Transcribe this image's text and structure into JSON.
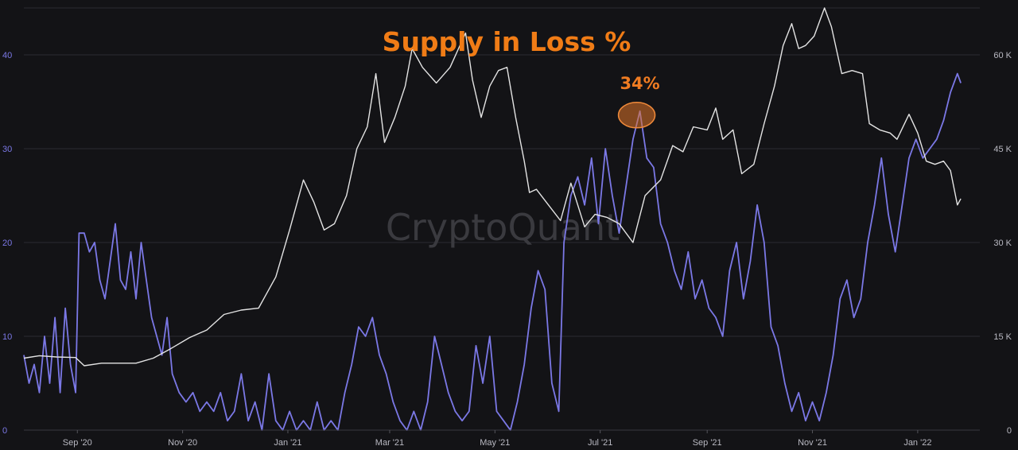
{
  "chart_data": {
    "type": "line",
    "title": "Supply in Loss %",
    "watermark": "CryptoQuant",
    "annotation": {
      "label": "34%",
      "x": "2021-07-24",
      "y": 34
    },
    "x": {
      "type": "date",
      "range": [
        "2020-08-01",
        "2022-02-06"
      ],
      "tick_labels": [
        {
          "label": "Sep '20",
          "date": "2020-09-01"
        },
        {
          "label": "Nov '20",
          "date": "2020-11-01"
        },
        {
          "label": "Jan '21",
          "date": "2021-01-01"
        },
        {
          "label": "Mar '21",
          "date": "2021-03-01"
        },
        {
          "label": "May '21",
          "date": "2021-05-01"
        },
        {
          "label": "Jul '21",
          "date": "2021-07-01"
        },
        {
          "label": "Sep '21",
          "date": "2021-09-01"
        },
        {
          "label": "Nov '21",
          "date": "2021-11-01"
        },
        {
          "label": "Jan '22",
          "date": "2022-01-01"
        }
      ]
    },
    "y_left": {
      "range": [
        0,
        45
      ],
      "ticks": [
        0,
        10,
        20,
        30,
        40
      ],
      "tick_labels": [
        "0",
        "10",
        "20",
        "30",
        "40"
      ]
    },
    "y_right": {
      "range": [
        0,
        67500
      ],
      "ticks": [
        0,
        15000,
        30000,
        45000,
        60000
      ],
      "tick_labels": [
        "0",
        "15 K",
        "30 K",
        "45 K",
        "60 K"
      ]
    },
    "grid": true,
    "series": [
      {
        "axis": "left",
        "color": "#7b78e6",
        "points": [
          [
            "2020-08-01",
            8
          ],
          [
            "2020-08-04",
            5
          ],
          [
            "2020-08-07",
            7
          ],
          [
            "2020-08-10",
            4
          ],
          [
            "2020-08-13",
            10
          ],
          [
            "2020-08-16",
            5
          ],
          [
            "2020-08-19",
            12
          ],
          [
            "2020-08-22",
            4
          ],
          [
            "2020-08-25",
            13
          ],
          [
            "2020-08-28",
            7
          ],
          [
            "2020-08-31",
            4
          ],
          [
            "2020-09-02",
            21
          ],
          [
            "2020-09-05",
            21
          ],
          [
            "2020-09-08",
            19
          ],
          [
            "2020-09-11",
            20
          ],
          [
            "2020-09-14",
            16
          ],
          [
            "2020-09-17",
            14
          ],
          [
            "2020-09-20",
            18
          ],
          [
            "2020-09-23",
            22
          ],
          [
            "2020-09-26",
            16
          ],
          [
            "2020-09-29",
            15
          ],
          [
            "2020-10-02",
            19
          ],
          [
            "2020-10-05",
            14
          ],
          [
            "2020-10-08",
            20
          ],
          [
            "2020-10-11",
            16
          ],
          [
            "2020-10-14",
            12
          ],
          [
            "2020-10-17",
            10
          ],
          [
            "2020-10-20",
            8
          ],
          [
            "2020-10-23",
            12
          ],
          [
            "2020-10-26",
            6
          ],
          [
            "2020-10-30",
            4
          ],
          [
            "2020-11-03",
            3
          ],
          [
            "2020-11-07",
            4
          ],
          [
            "2020-11-11",
            2
          ],
          [
            "2020-11-15",
            3
          ],
          [
            "2020-11-19",
            2
          ],
          [
            "2020-11-23",
            4
          ],
          [
            "2020-11-27",
            1
          ],
          [
            "2020-12-01",
            2
          ],
          [
            "2020-12-05",
            6
          ],
          [
            "2020-12-09",
            1
          ],
          [
            "2020-12-13",
            3
          ],
          [
            "2020-12-17",
            0
          ],
          [
            "2020-12-21",
            6
          ],
          [
            "2020-12-25",
            1
          ],
          [
            "2020-12-29",
            0
          ],
          [
            "2021-01-02",
            2
          ],
          [
            "2021-01-06",
            0
          ],
          [
            "2021-01-10",
            1
          ],
          [
            "2021-01-14",
            0
          ],
          [
            "2021-01-18",
            3
          ],
          [
            "2021-01-22",
            0
          ],
          [
            "2021-01-26",
            1
          ],
          [
            "2021-01-30",
            0
          ],
          [
            "2021-02-03",
            4
          ],
          [
            "2021-02-07",
            7
          ],
          [
            "2021-02-11",
            11
          ],
          [
            "2021-02-15",
            10
          ],
          [
            "2021-02-19",
            12
          ],
          [
            "2021-02-23",
            8
          ],
          [
            "2021-02-27",
            6
          ],
          [
            "2021-03-03",
            3
          ],
          [
            "2021-03-07",
            1
          ],
          [
            "2021-03-11",
            0
          ],
          [
            "2021-03-15",
            2
          ],
          [
            "2021-03-19",
            0
          ],
          [
            "2021-03-23",
            3
          ],
          [
            "2021-03-27",
            10
          ],
          [
            "2021-03-31",
            7
          ],
          [
            "2021-04-04",
            4
          ],
          [
            "2021-04-08",
            2
          ],
          [
            "2021-04-12",
            1
          ],
          [
            "2021-04-16",
            2
          ],
          [
            "2021-04-20",
            9
          ],
          [
            "2021-04-24",
            5
          ],
          [
            "2021-04-28",
            10
          ],
          [
            "2021-05-02",
            2
          ],
          [
            "2021-05-06",
            1
          ],
          [
            "2021-05-10",
            0
          ],
          [
            "2021-05-14",
            3
          ],
          [
            "2021-05-18",
            7
          ],
          [
            "2021-05-22",
            13
          ],
          [
            "2021-05-26",
            17
          ],
          [
            "2021-05-30",
            15
          ],
          [
            "2021-06-03",
            5
          ],
          [
            "2021-06-07",
            2
          ],
          [
            "2021-06-10",
            20
          ],
          [
            "2021-06-14",
            25
          ],
          [
            "2021-06-18",
            27
          ],
          [
            "2021-06-22",
            24
          ],
          [
            "2021-06-26",
            29
          ],
          [
            "2021-06-30",
            22
          ],
          [
            "2021-07-04",
            30
          ],
          [
            "2021-07-08",
            25
          ],
          [
            "2021-07-12",
            21
          ],
          [
            "2021-07-16",
            26
          ],
          [
            "2021-07-20",
            31
          ],
          [
            "2021-07-24",
            34
          ],
          [
            "2021-07-28",
            29
          ],
          [
            "2021-08-01",
            28
          ],
          [
            "2021-08-05",
            22
          ],
          [
            "2021-08-09",
            20
          ],
          [
            "2021-08-13",
            17
          ],
          [
            "2021-08-17",
            15
          ],
          [
            "2021-08-21",
            19
          ],
          [
            "2021-08-25",
            14
          ],
          [
            "2021-08-29",
            16
          ],
          [
            "2021-09-02",
            13
          ],
          [
            "2021-09-06",
            12
          ],
          [
            "2021-09-10",
            10
          ],
          [
            "2021-09-14",
            17
          ],
          [
            "2021-09-18",
            20
          ],
          [
            "2021-09-22",
            14
          ],
          [
            "2021-09-26",
            18
          ],
          [
            "2021-09-30",
            24
          ],
          [
            "2021-10-04",
            20
          ],
          [
            "2021-10-08",
            11
          ],
          [
            "2021-10-12",
            9
          ],
          [
            "2021-10-16",
            5
          ],
          [
            "2021-10-20",
            2
          ],
          [
            "2021-10-24",
            4
          ],
          [
            "2021-10-28",
            1
          ],
          [
            "2021-11-01",
            3
          ],
          [
            "2021-11-05",
            1
          ],
          [
            "2021-11-09",
            4
          ],
          [
            "2021-11-13",
            8
          ],
          [
            "2021-11-17",
            14
          ],
          [
            "2021-11-21",
            16
          ],
          [
            "2021-11-25",
            12
          ],
          [
            "2021-11-29",
            14
          ],
          [
            "2021-12-03",
            20
          ],
          [
            "2021-12-07",
            24
          ],
          [
            "2021-12-11",
            29
          ],
          [
            "2021-12-15",
            23
          ],
          [
            "2021-12-19",
            19
          ],
          [
            "2021-12-23",
            24
          ],
          [
            "2021-12-27",
            29
          ],
          [
            "2021-12-31",
            31
          ],
          [
            "2022-01-04",
            29
          ],
          [
            "2022-01-08",
            30
          ],
          [
            "2022-01-12",
            31
          ],
          [
            "2022-01-16",
            33
          ],
          [
            "2022-01-20",
            36
          ],
          [
            "2022-01-24",
            38
          ],
          [
            "2022-01-26",
            37
          ]
        ]
      },
      {
        "axis": "right",
        "color": "#e4e4e4",
        "points": [
          [
            "2020-08-01",
            11500
          ],
          [
            "2020-08-10",
            11900
          ],
          [
            "2020-08-20",
            11700
          ],
          [
            "2020-08-31",
            11600
          ],
          [
            "2020-09-05",
            10300
          ],
          [
            "2020-09-15",
            10700
          ],
          [
            "2020-09-25",
            10700
          ],
          [
            "2020-10-05",
            10700
          ],
          [
            "2020-10-15",
            11500
          ],
          [
            "2020-10-25",
            13000
          ],
          [
            "2020-11-05",
            14800
          ],
          [
            "2020-11-15",
            16000
          ],
          [
            "2020-11-25",
            18500
          ],
          [
            "2020-12-05",
            19200
          ],
          [
            "2020-12-15",
            19500
          ],
          [
            "2020-12-25",
            24500
          ],
          [
            "2021-01-02",
            32000
          ],
          [
            "2021-01-06",
            36000
          ],
          [
            "2021-01-10",
            40000
          ],
          [
            "2021-01-16",
            36500
          ],
          [
            "2021-01-22",
            32000
          ],
          [
            "2021-01-28",
            33000
          ],
          [
            "2021-02-04",
            37500
          ],
          [
            "2021-02-10",
            45000
          ],
          [
            "2021-02-16",
            48500
          ],
          [
            "2021-02-21",
            57000
          ],
          [
            "2021-02-26",
            46000
          ],
          [
            "2021-03-04",
            50000
          ],
          [
            "2021-03-10",
            55000
          ],
          [
            "2021-03-14",
            61000
          ],
          [
            "2021-03-20",
            58000
          ],
          [
            "2021-03-28",
            55500
          ],
          [
            "2021-04-05",
            58000
          ],
          [
            "2021-04-14",
            63500
          ],
          [
            "2021-04-18",
            56000
          ],
          [
            "2021-04-23",
            50000
          ],
          [
            "2021-04-28",
            55000
          ],
          [
            "2021-05-03",
            57500
          ],
          [
            "2021-05-08",
            58000
          ],
          [
            "2021-05-13",
            50000
          ],
          [
            "2021-05-18",
            43000
          ],
          [
            "2021-05-21",
            38000
          ],
          [
            "2021-05-25",
            38500
          ],
          [
            "2021-06-01",
            36000
          ],
          [
            "2021-06-08",
            33500
          ],
          [
            "2021-06-14",
            39500
          ],
          [
            "2021-06-22",
            32500
          ],
          [
            "2021-06-28",
            34500
          ],
          [
            "2021-07-05",
            34000
          ],
          [
            "2021-07-12",
            33000
          ],
          [
            "2021-07-20",
            30000
          ],
          [
            "2021-07-27",
            37500
          ],
          [
            "2021-08-05",
            40000
          ],
          [
            "2021-08-12",
            45500
          ],
          [
            "2021-08-18",
            44500
          ],
          [
            "2021-08-24",
            48500
          ],
          [
            "2021-09-01",
            48000
          ],
          [
            "2021-09-06",
            51500
          ],
          [
            "2021-09-10",
            46500
          ],
          [
            "2021-09-16",
            48000
          ],
          [
            "2021-09-21",
            41000
          ],
          [
            "2021-09-28",
            42500
          ],
          [
            "2021-10-04",
            49000
          ],
          [
            "2021-10-10",
            55000
          ],
          [
            "2021-10-15",
            61500
          ],
          [
            "2021-10-20",
            65000
          ],
          [
            "2021-10-24",
            61000
          ],
          [
            "2021-10-28",
            61500
          ],
          [
            "2021-11-02",
            63000
          ],
          [
            "2021-11-08",
            67500
          ],
          [
            "2021-11-12",
            64500
          ],
          [
            "2021-11-18",
            57000
          ],
          [
            "2021-11-24",
            57500
          ],
          [
            "2021-11-30",
            57000
          ],
          [
            "2021-12-04",
            49000
          ],
          [
            "2021-12-10",
            48000
          ],
          [
            "2021-12-16",
            47500
          ],
          [
            "2021-12-20",
            46500
          ],
          [
            "2021-12-27",
            50500
          ],
          [
            "2022-01-01",
            47500
          ],
          [
            "2022-01-06",
            43000
          ],
          [
            "2022-01-11",
            42500
          ],
          [
            "2022-01-16",
            43000
          ],
          [
            "2022-01-20",
            41500
          ],
          [
            "2022-01-24",
            36000
          ],
          [
            "2022-01-26",
            37000
          ]
        ]
      }
    ]
  }
}
